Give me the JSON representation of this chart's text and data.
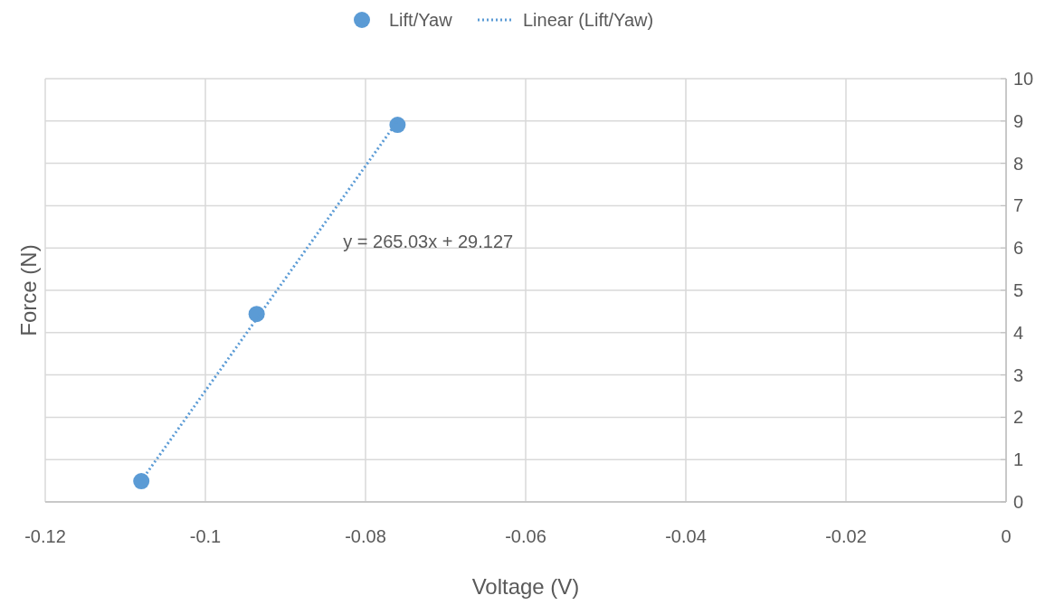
{
  "chart_data": {
    "type": "scatter",
    "xlabel": "Voltage (V)",
    "ylabel": "Force (N)",
    "xlim": [
      -0.12,
      0
    ],
    "xticks": [
      -0.12,
      -0.1,
      -0.08,
      -0.06,
      -0.04,
      -0.02,
      0
    ],
    "ylim": [
      0,
      10
    ],
    "yticks": [
      0,
      1,
      2,
      3,
      4,
      5,
      6,
      7,
      8,
      9,
      10
    ],
    "grid": true,
    "legend": "top",
    "marker": "circle",
    "series": [
      {
        "name": "Lift/Yaw",
        "color": "#5b9bd5",
        "x": [
          -0.108,
          -0.0936,
          -0.076
        ],
        "values": [
          0.49,
          4.44,
          8.91
        ]
      },
      {
        "name": "Linear (Lift/Yaw)",
        "type": "line",
        "line_style": "dotted",
        "marker": "none",
        "color": "#5b9bd5",
        "x": [
          -0.108,
          -0.076
        ],
        "values": [
          0.5,
          9.0
        ]
      }
    ],
    "annotations": [
      "y = 265.03x + 29.127"
    ]
  }
}
